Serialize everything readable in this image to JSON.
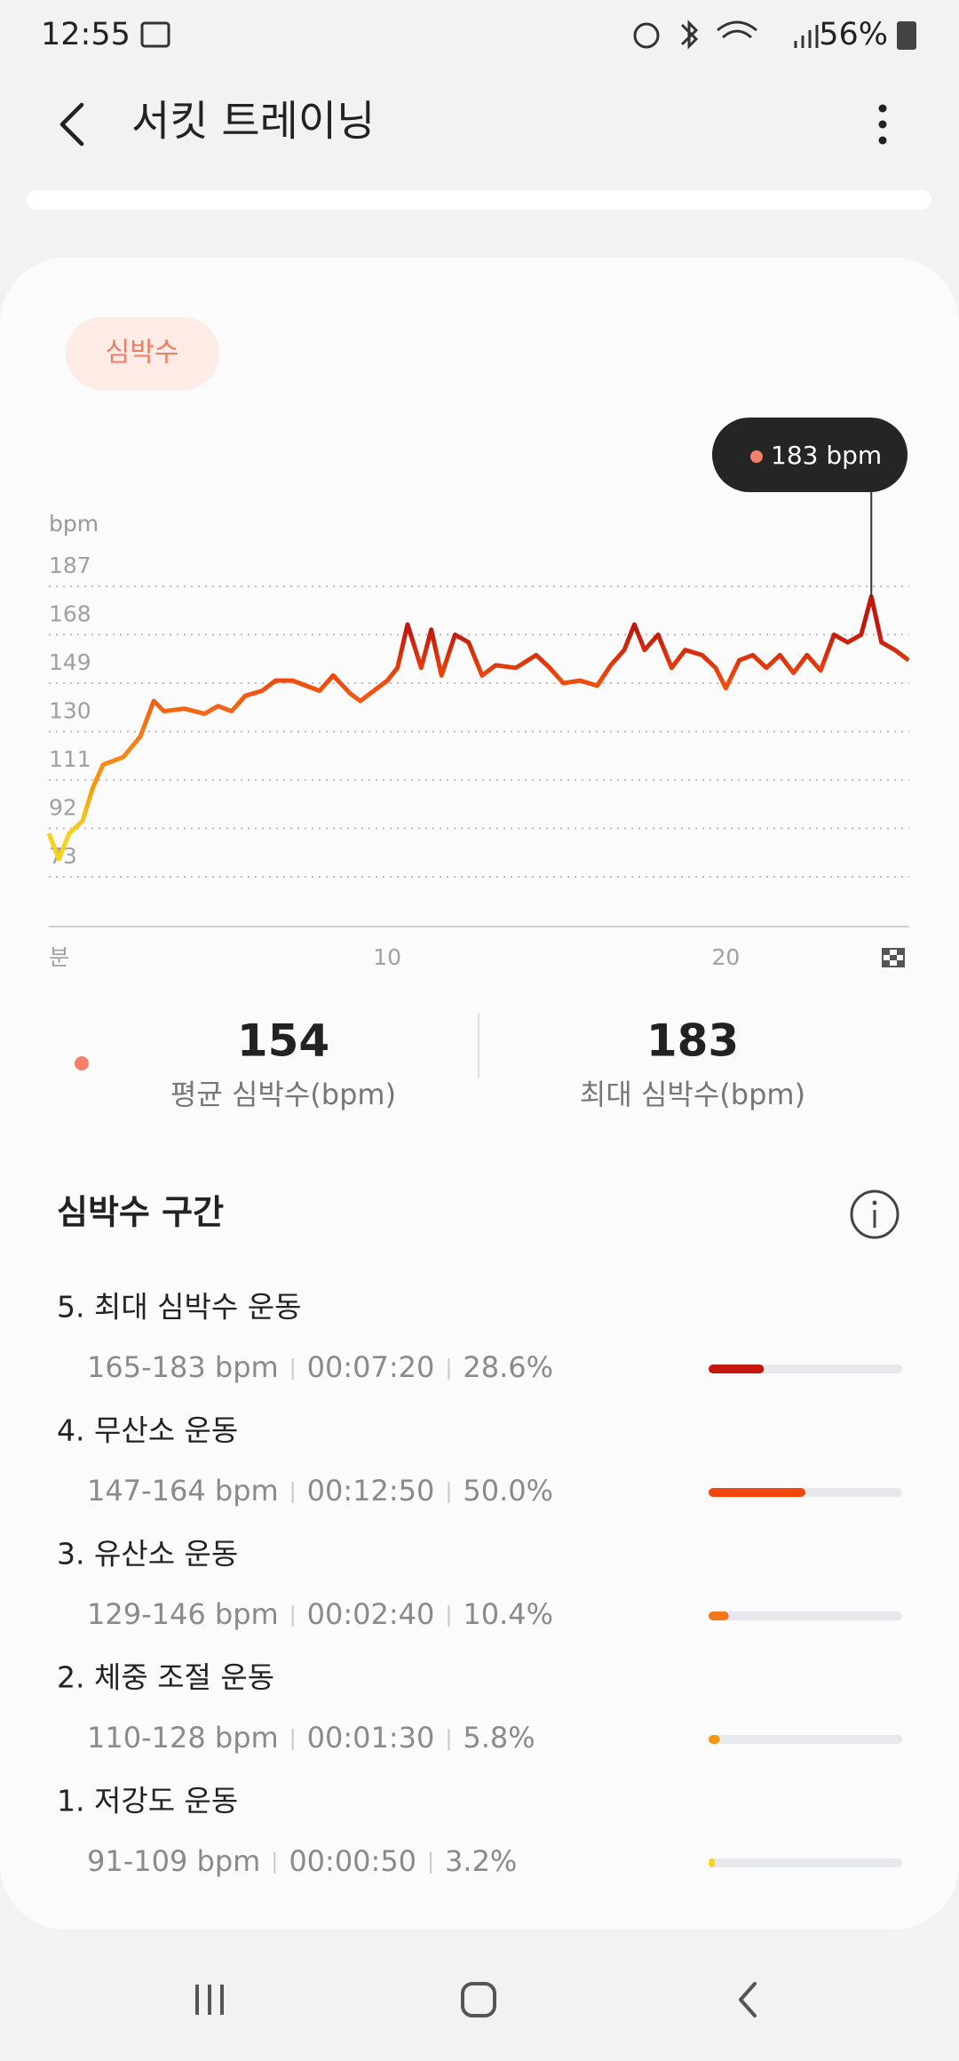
{
  "status_bar": {
    "time": "12:55",
    "battery": "56%"
  },
  "header": {
    "title": "서킷 트레이닝"
  },
  "heart_rate_chart": {
    "type": "line",
    "chip": "심박수",
    "y_unit": "bpm",
    "tooltip": "183 bpm",
    "x": [
      0,
      0.3,
      0.6,
      1,
      1.3,
      1.6,
      2.2,
      2.7,
      3.1,
      3.4,
      4,
      4.6,
      5,
      5.4,
      5.8,
      6.3,
      6.7,
      7.2,
      7.6,
      8,
      8.4,
      8.9,
      9.2,
      9.6,
      10,
      10.3,
      10.6,
      11,
      11.3,
      11.6,
      12,
      12.4,
      12.8,
      13.2,
      13.8,
      14.4,
      14.8,
      15.2,
      15.7,
      16.2,
      16.6,
      17,
      17.3,
      17.6,
      18,
      18.4,
      18.8,
      19.3,
      19.7,
      20,
      20.4,
      20.8,
      21.2,
      21.6,
      22,
      22.4,
      22.8,
      23.2,
      23.6,
      24,
      24.3,
      24.6,
      25,
      25.4
    ],
    "values": [
      90,
      80,
      90,
      95,
      108,
      117,
      120,
      128,
      142,
      138,
      139,
      137,
      140,
      138,
      144,
      146,
      150,
      150,
      148,
      146,
      152,
      145,
      142,
      146,
      150,
      155,
      172,
      155,
      170,
      152,
      168,
      165,
      152,
      156,
      155,
      160,
      155,
      149,
      150,
      148,
      156,
      162,
      172,
      162,
      168,
      155,
      162,
      160,
      155,
      147,
      158,
      160,
      155,
      160,
      153,
      160,
      154,
      168,
      165,
      168,
      183,
      165,
      162,
      158
    ],
    "line_colors": [
      "#f5d21c",
      "#f5960f",
      "#f57a1a",
      "#f04a0c",
      "#c0180c"
    ],
    "xlim": [
      0,
      25.5
    ],
    "ylim": [
      73,
      187
    ],
    "yticks": [
      187,
      168,
      149,
      130,
      111,
      92,
      73
    ],
    "xticks": [
      {
        "value": 0,
        "label": "분"
      },
      10,
      20
    ],
    "grid": true
  },
  "stats": [
    {
      "value": 154,
      "label": "평균 심박수(bpm)"
    },
    {
      "value": 183,
      "label": "최대 심박수(bpm)"
    }
  ],
  "zones_section": {
    "title": "심박수 구간",
    "zones": [
      {
        "name": "5. 최대 심박수 운동",
        "range": "165-183 bpm",
        "duration": "00:07:20",
        "percent": {
          "value": 28.6,
          "label": "28.6%"
        },
        "color": "#c4180c"
      },
      {
        "name": "4. 무산소 운동",
        "range": "147-164 bpm",
        "duration": "00:12:50",
        "percent": {
          "value": 50.0,
          "label": "50.0%"
        },
        "color": "#f2470c"
      },
      {
        "name": "3. 유산소 운동",
        "range": "129-146 bpm",
        "duration": "00:02:40",
        "percent": {
          "value": 10.4,
          "label": "10.4%"
        },
        "color": "#f5761a"
      },
      {
        "name": "2. 체중 조절 운동",
        "range": "110-128 bpm",
        "duration": "00:01:30",
        "percent": {
          "value": 5.8,
          "label": "5.8%"
        },
        "color": "#f5960f"
      },
      {
        "name": "1. 저강도 운동",
        "range": "91-109 bpm",
        "duration": "00:00:50",
        "percent": {
          "value": 3.2,
          "label": "3.2%"
        },
        "color": "#f5d21c"
      }
    ]
  }
}
